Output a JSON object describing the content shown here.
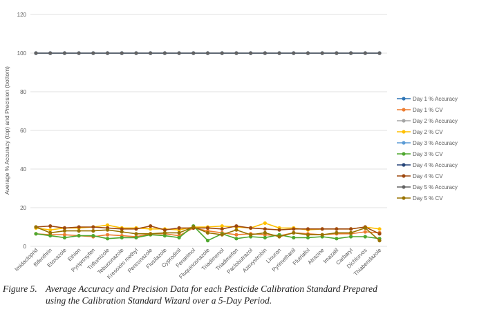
{
  "chart_data": {
    "type": "line",
    "title": "",
    "xlabel": "",
    "ylabel": "Average % Accuracy (top) and Precision (bottom)",
    "ylim": [
      0,
      120
    ],
    "yticks": [
      0,
      20,
      40,
      60,
      80,
      100,
      120
    ],
    "grid": true,
    "legend_position": "right",
    "categories": [
      "Imidacloprid",
      "Bifenthrin",
      "Etoxazole",
      "Ethion",
      "Pyriproxyfen",
      "Triflumizole",
      "Tebuconazole",
      "Kresoxim methyl",
      "Penconazole",
      "Flusilazole",
      "Cyprodinil",
      "Fenarimol",
      "Fluquinconazole",
      "Triadimenol",
      "Triadimefon",
      "Paclobutrazol",
      "Azoxystrobin",
      "Linuron",
      "Pyrimethanil",
      "Flutriafol",
      "Atrazine",
      "Imazalil",
      "Carbaryl",
      "Dichlorvos",
      "Thiabendazole"
    ],
    "series": [
      {
        "name": "Day 1 % Accuracy",
        "color": "#2E75B6",
        "values": [
          100,
          100,
          100,
          100,
          100,
          100,
          100,
          100,
          100,
          100,
          100,
          100,
          100,
          100,
          100,
          100,
          100,
          100,
          100,
          100,
          100,
          100,
          100,
          100,
          100
        ]
      },
      {
        "name": "Day 1 % CV",
        "color": "#ED7D31",
        "values": [
          6.5,
          6,
          6,
          5.5,
          5,
          6,
          5.5,
          5,
          6.5,
          6.5,
          5.5,
          9.5,
          8,
          7,
          6,
          6.5,
          6,
          5.5,
          7,
          6.5,
          6,
          6.5,
          6.5,
          7.5,
          7
        ]
      },
      {
        "name": "Day 2 % Accuracy",
        "color": "#A5A5A5",
        "values": [
          100,
          100,
          100,
          100,
          100,
          100,
          100,
          100,
          100,
          100,
          100,
          100,
          100,
          100,
          100,
          100,
          100,
          100,
          100,
          100,
          100,
          100,
          100,
          100,
          100
        ]
      },
      {
        "name": "Day 2 % CV",
        "color": "#FFC000",
        "values": [
          9.5,
          8.5,
          9.5,
          9.5,
          10,
          11,
          9.5,
          9.5,
          9,
          9,
          8.5,
          10,
          10,
          10.5,
          10,
          9.5,
          12,
          9.5,
          9.5,
          8.5,
          9,
          9,
          9,
          10,
          9
        ]
      },
      {
        "name": "Day 3 % Accuracy",
        "color": "#5B9BD5",
        "values": [
          100,
          100,
          100,
          100,
          100,
          100,
          100,
          100,
          100,
          100,
          100,
          100,
          100,
          100,
          100,
          100,
          100,
          100,
          100,
          100,
          100,
          100,
          100,
          100,
          100
        ]
      },
      {
        "name": "Day 3 % CV",
        "color": "#4EA72E",
        "values": [
          6.5,
          5.5,
          4.5,
          5.5,
          5.5,
          4,
          4.5,
          4.5,
          6,
          5.5,
          4.5,
          10.5,
          3,
          6.5,
          4,
          5,
          4.5,
          6,
          4.5,
          4.5,
          5,
          4,
          5,
          5,
          4
        ]
      },
      {
        "name": "Day 4 % Accuracy",
        "color": "#264478",
        "values": [
          100,
          100,
          100,
          100,
          100,
          100,
          100,
          100,
          100,
          100,
          100,
          100,
          100,
          100,
          100,
          100,
          100,
          100,
          100,
          100,
          100,
          100,
          100,
          100,
          100
        ]
      },
      {
        "name": "Day 4 % CV",
        "color": "#9E480E",
        "values": [
          10,
          10.5,
          9.5,
          10,
          10,
          9.5,
          9,
          9,
          10.5,
          8.5,
          9.5,
          9.5,
          9.5,
          9,
          10.5,
          9.5,
          9,
          8.5,
          9,
          9,
          9,
          9,
          9,
          10,
          6.5
        ]
      },
      {
        "name": "Day 5 % Accuracy",
        "color": "#636363",
        "values": [
          100,
          100,
          100,
          100,
          100,
          100,
          100,
          100,
          100,
          100,
          100,
          100,
          100,
          100,
          100,
          100,
          100,
          100,
          100,
          100,
          100,
          100,
          100,
          100,
          100
        ]
      },
      {
        "name": "Day 5 % CV",
        "color": "#997300",
        "values": [
          10,
          7,
          8,
          8,
          8,
          8.5,
          7.5,
          6.5,
          6.5,
          7,
          7,
          10,
          7,
          6,
          8.5,
          6,
          7,
          5,
          7,
          6,
          6,
          7,
          7,
          9.5,
          3
        ]
      }
    ]
  },
  "caption": {
    "figure_number": "Figure 5.",
    "line1": "Average Accuracy and Precision Data for each Pesticide Calibration Standard Prepared",
    "line2": "using the Calibration Standard Wizard over a 5-Day Period."
  }
}
